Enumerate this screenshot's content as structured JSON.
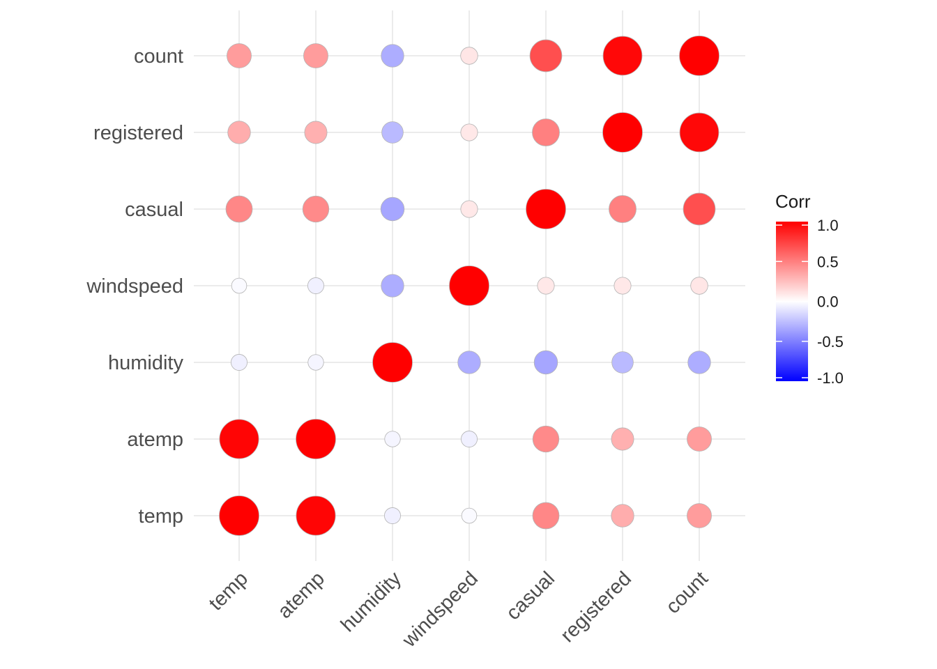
{
  "chart_data": {
    "type": "heatmap",
    "variables": [
      "temp",
      "atemp",
      "humidity",
      "windspeed",
      "casual",
      "registered",
      "count"
    ],
    "x_categories": [
      "temp",
      "atemp",
      "humidity",
      "windspeed",
      "casual",
      "registered",
      "count"
    ],
    "y_categories": [
      "temp",
      "atemp",
      "humidity",
      "windspeed",
      "casual",
      "registered",
      "count"
    ],
    "matrix": [
      [
        1.0,
        0.98,
        -0.06,
        -0.02,
        0.47,
        0.32,
        0.39
      ],
      [
        0.98,
        1.0,
        -0.04,
        -0.06,
        0.46,
        0.31,
        0.39
      ],
      [
        -0.06,
        -0.04,
        1.0,
        -0.32,
        -0.35,
        -0.27,
        -0.32
      ],
      [
        -0.02,
        -0.06,
        -0.32,
        1.0,
        0.09,
        0.09,
        0.1
      ],
      [
        0.47,
        0.46,
        -0.35,
        0.09,
        1.0,
        0.5,
        0.69
      ],
      [
        0.32,
        0.31,
        -0.27,
        0.09,
        0.5,
        1.0,
        0.97
      ],
      [
        0.39,
        0.39,
        -0.32,
        0.1,
        0.69,
        0.97,
        1.0
      ]
    ],
    "legend": {
      "title": "Corr",
      "ticks": [
        "1.0",
        "0.5",
        "0.0",
        "-0.5",
        "-1.0"
      ],
      "tick_values": [
        1.0,
        0.5,
        0.0,
        -0.5,
        -1.0
      ],
      "range": [
        -1.0,
        1.0
      ],
      "colors": {
        "low": "#0000ff",
        "mid": "#ffffff",
        "high": "#ff0000"
      },
      "placement": "right"
    },
    "grid": true
  }
}
